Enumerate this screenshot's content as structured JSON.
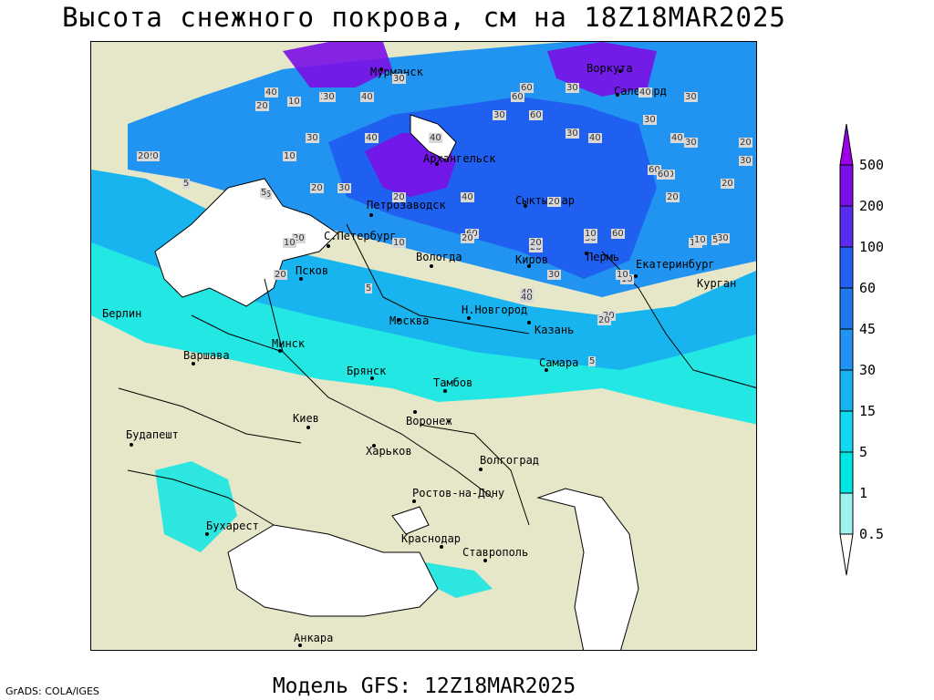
{
  "title": "Высота снежного покрова, см на 18Z18MAR2025",
  "subtitle": "Модель GFS: 12Z18MAR2025",
  "credit": "GrADS: COLA/IGES",
  "legend": {
    "labels": [
      "500",
      "200",
      "100",
      "60",
      "45",
      "30",
      "15",
      "5",
      "1",
      "0.5"
    ],
    "colors": [
      "#9b00e6",
      "#7a10e6",
      "#5a2cf0",
      "#2060f0",
      "#1e78f0",
      "#2094f0",
      "#18b4f0",
      "#10d8ee",
      "#00e6e6",
      "#a0f0f0"
    ]
  },
  "colors": {
    "land": "#e6e6c8",
    "water": "#ffffff",
    "snow_light": "#a0f0f0",
    "snow_cyan": "#00e6e6",
    "snow_sky": "#18b4f0",
    "snow_blue": "#2094f0",
    "snow_deep": "#2060f0",
    "snow_purple": "#7a10e6"
  },
  "cities": [
    {
      "name": "Мурманск"
    },
    {
      "name": "Воркута"
    },
    {
      "name": "Салехард"
    },
    {
      "name": "Архангельск"
    },
    {
      "name": "Петрозаводск"
    },
    {
      "name": "Сыктывкар"
    },
    {
      "name": "С.Петербург"
    },
    {
      "name": "Вологда"
    },
    {
      "name": "Киров"
    },
    {
      "name": "Пермь"
    },
    {
      "name": "Екатеринбург"
    },
    {
      "name": "Курган"
    },
    {
      "name": "Псков"
    },
    {
      "name": "Н.Новгород"
    },
    {
      "name": "Берлин"
    },
    {
      "name": "Москва"
    },
    {
      "name": "Казань"
    },
    {
      "name": "Минск"
    },
    {
      "name": "Варшава"
    },
    {
      "name": "Брянск"
    },
    {
      "name": "Самара"
    },
    {
      "name": "Тамбов"
    },
    {
      "name": "Киев"
    },
    {
      "name": "Воронеж"
    },
    {
      "name": "Будапешт"
    },
    {
      "name": "Харьков"
    },
    {
      "name": "Волгоград"
    },
    {
      "name": "Ростов-на-Дону"
    },
    {
      "name": "Бухарест"
    },
    {
      "name": "Краснодар"
    },
    {
      "name": "Ставрополь"
    },
    {
      "name": "Анкара"
    }
  ],
  "contour_labels": [
    "40",
    "10",
    "40",
    "30",
    "40",
    "30",
    "60",
    "60",
    "30",
    "30",
    "40",
    "20",
    "30",
    "20",
    "30",
    "10",
    "30",
    "20",
    "20",
    "40",
    "40",
    "30",
    "40",
    "30",
    "40",
    "20",
    "30",
    "30",
    "60",
    "30",
    "40",
    "60",
    "20",
    "20",
    "5",
    "5",
    "20",
    "10",
    "40",
    "5",
    "10",
    "30",
    "60",
    "60",
    "20",
    "30",
    "30",
    "20",
    "20",
    "20",
    "10",
    "10",
    "20",
    "20",
    "10",
    "5",
    "20",
    "5",
    "40",
    "10",
    "10",
    "5",
    "20",
    "60"
  ]
}
